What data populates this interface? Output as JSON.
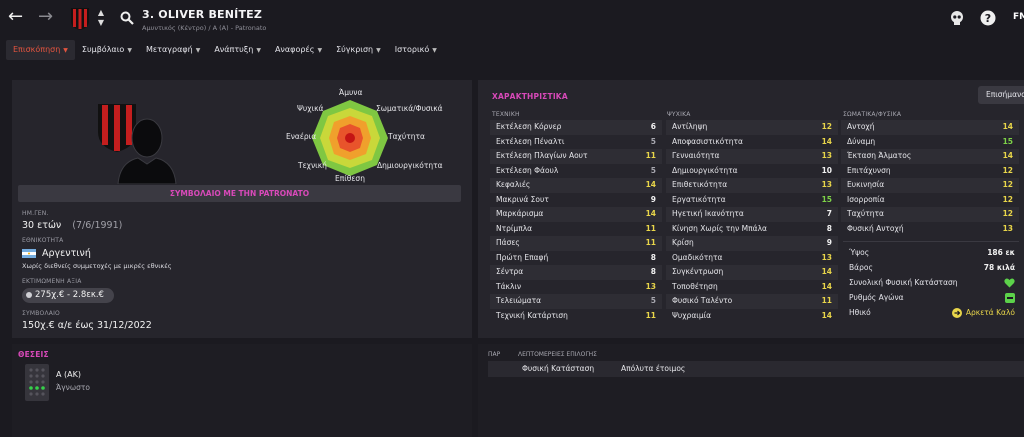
{
  "header": {
    "player_name": "3. OLIVER BENÍTEZ",
    "subtitle": "Αμυντικός (Κέντρο) / Α (Α) - Patronato",
    "fm_label": "FM",
    "icons": [
      "back-arrow-icon",
      "forward-arrow-icon",
      "club-crest-icon",
      "up-down-icon",
      "search-icon",
      "skull-icon",
      "help-icon"
    ]
  },
  "tabs": [
    {
      "label": "Επισκόπηση"
    },
    {
      "label": "Συμβόλαιο"
    },
    {
      "label": "Μεταγραφή"
    },
    {
      "label": "Ανάπτυξη"
    },
    {
      "label": "Αναφορές"
    },
    {
      "label": "Σύγκριση"
    },
    {
      "label": "Ιστορικό"
    }
  ],
  "overview": {
    "radar_labels": {
      "top": "Άμυνα",
      "top_right": "Σωματικά/Φυσικά",
      "right": "Ταχύτητα",
      "bottom_right": "Δημιουργικότητα",
      "bottom": "Επίθεση",
      "bottom_left": "Τεχνική",
      "left": "Εναέρια",
      "top_left": "Ψυχικά"
    },
    "contract_banner": "ΣΥΜΒΟΛΑΙΟ ΜΕ ΤΗΝ PATRONATO",
    "dob_label": "ΗΜ.ΓΕΝ.",
    "dob_age": "30 ετών",
    "dob_date": "(7/6/1991)",
    "nationality_label": "ΕΘΝΙΚΟΤΗΤΑ",
    "nationality": "Αργεντινή",
    "international_note": "Χωρίς διεθνείς συμμετοχές με μικρές εθνικές",
    "value_label": "ΕΚΤΙΜΩΜΕΝΗ ΑΞΙΑ",
    "value": "275χ.€ - 2.8εκ.€",
    "contract_label": "ΣΥΜΒΟΛΑΙΟ",
    "contract": "150χ.€ α/ε έως 31/12/2022"
  },
  "attributes": {
    "title": "ΧΑΡΑΚΤΗΡΙΣΤΙΚΑ",
    "highlight_button": "Επισήμανση",
    "technical": {
      "header": "ΤΕΧΝΙΚΗ",
      "rows": [
        {
          "name": "Εκτέλεση Κόρνερ",
          "value": "6",
          "tone": "white"
        },
        {
          "name": "Εκτέλεση Πέναλτι",
          "value": "5",
          "tone": "gray"
        },
        {
          "name": "Εκτέλεση Πλαγίων Αουτ",
          "value": "11",
          "tone": "yellow"
        },
        {
          "name": "Εκτέλεση Φάουλ",
          "value": "5",
          "tone": "gray"
        },
        {
          "name": "Κεφαλιές",
          "value": "14",
          "tone": "yellow"
        },
        {
          "name": "Μακρινά Σουτ",
          "value": "9",
          "tone": "white"
        },
        {
          "name": "Μαρκάρισμα",
          "value": "14",
          "tone": "yellow"
        },
        {
          "name": "Ντρίμπλα",
          "value": "11",
          "tone": "yellow"
        },
        {
          "name": "Πάσες",
          "value": "11",
          "tone": "yellow"
        },
        {
          "name": "Πρώτη Επαφή",
          "value": "8",
          "tone": "white"
        },
        {
          "name": "Σέντρα",
          "value": "8",
          "tone": "white"
        },
        {
          "name": "Τάκλιν",
          "value": "13",
          "tone": "yellow"
        },
        {
          "name": "Τελειώματα",
          "value": "5",
          "tone": "gray"
        },
        {
          "name": "Τεχνική Κατάρτιση",
          "value": "11",
          "tone": "yellow"
        }
      ]
    },
    "mental": {
      "header": "ΨΥΧΙΚΑ",
      "rows": [
        {
          "name": "Αντίληψη",
          "value": "12",
          "tone": "yellow"
        },
        {
          "name": "Αποφασιστικότητα",
          "value": "14",
          "tone": "yellow"
        },
        {
          "name": "Γενναιότητα",
          "value": "13",
          "tone": "yellow"
        },
        {
          "name": "Δημιουργικότητα",
          "value": "10",
          "tone": "white"
        },
        {
          "name": "Επιθετικότητα",
          "value": "13",
          "tone": "yellow"
        },
        {
          "name": "Εργατικότητα",
          "value": "15",
          "tone": "green"
        },
        {
          "name": "Ηγετική Ικανότητα",
          "value": "7",
          "tone": "white"
        },
        {
          "name": "Κίνηση Χωρίς την Μπάλα",
          "value": "8",
          "tone": "white"
        },
        {
          "name": "Κρίση",
          "value": "9",
          "tone": "white"
        },
        {
          "name": "Ομαδικότητα",
          "value": "13",
          "tone": "yellow"
        },
        {
          "name": "Συγκέντρωση",
          "value": "14",
          "tone": "yellow"
        },
        {
          "name": "Τοποθέτηση",
          "value": "14",
          "tone": "yellow"
        },
        {
          "name": "Φυσικό Ταλέντο",
          "value": "11",
          "tone": "yellow"
        },
        {
          "name": "Ψυχραιμία",
          "value": "14",
          "tone": "yellow"
        }
      ]
    },
    "physical": {
      "header": "ΣΩΜΑΤΙΚΑ/ΦΥΣΙΚΑ",
      "rows": [
        {
          "name": "Αντοχή",
          "value": "14",
          "tone": "yellow"
        },
        {
          "name": "Δύναμη",
          "value": "15",
          "tone": "green"
        },
        {
          "name": "Έκταση Άλματος",
          "value": "14",
          "tone": "yellow"
        },
        {
          "name": "Επιτάχυνση",
          "value": "12",
          "tone": "yellow"
        },
        {
          "name": "Ευκινησία",
          "value": "12",
          "tone": "yellow"
        },
        {
          "name": "Ισορροπία",
          "value": "12",
          "tone": "yellow"
        },
        {
          "name": "Ταχύτητα",
          "value": "12",
          "tone": "yellow"
        },
        {
          "name": "Φυσική Αντοχή",
          "value": "13",
          "tone": "yellow"
        }
      ]
    },
    "physical_info": {
      "height_label": "Ύψος",
      "height": "186 εκ",
      "weight_label": "Βάρος",
      "weight": "78 κιλά",
      "condition_label": "Συνολική Φυσική Κατάσταση",
      "sharpness_label": "Ρυθμός Αγώνα",
      "morale_label": "Ηθικό",
      "morale": "Αρκετά Καλό"
    }
  },
  "positions": {
    "title": "ΘΕΣΕΙΣ",
    "position": "Α (ΑΚ)",
    "familiarity": "Άγνωστο"
  },
  "selection": {
    "col_par": "ΠΑΡ",
    "col_details": "ΛΕΠΤΟΜΕΡΕΙΕΣ ΕΠΙΛΟΓΗΣ",
    "condition_label": "Φυσική Κατάσταση",
    "condition_value": "Απόλυτα έτοιμος"
  },
  "colors": {
    "accent_red": "#e2543f",
    "section_pink": "#d849b9",
    "value_yellow": "#e9d64a",
    "value_green": "#7ed348",
    "panel_bg": "#26252c"
  }
}
